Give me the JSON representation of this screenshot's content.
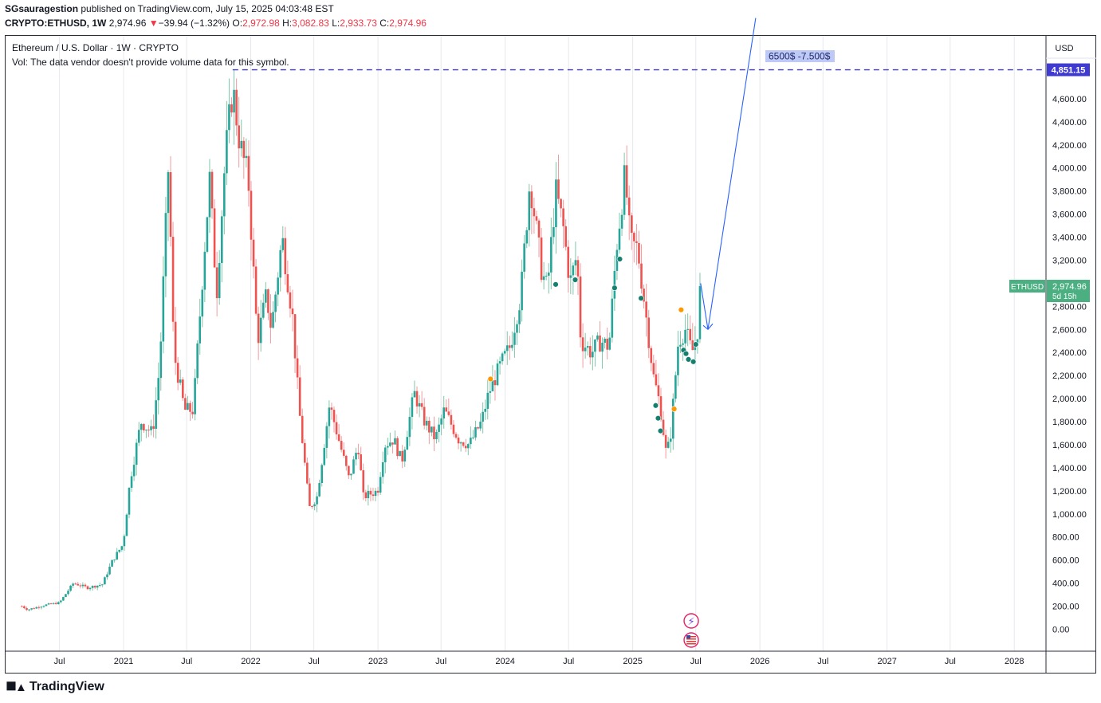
{
  "header": {
    "author": "SGsauragestion",
    "published": "published on TradingView.com, July 15, 2025 04:03:48 EST"
  },
  "ohlc": {
    "symbol": "CRYPTO:ETHUSD, 1W",
    "last": "2,974.96",
    "arrow": "▼",
    "change": "−39.94 (−1.32%)",
    "o_label": "O:",
    "o": "2,972.98",
    "h_label": "H:",
    "h": "3,082.83",
    "l_label": "L:",
    "l": "2,933.73",
    "c_label": "C:",
    "c": "2,974.96"
  },
  "legend": {
    "title": "Ethereum / U.S. Dollar · 1W · CRYPTO",
    "vol": "Vol: The data vendor doesn't provide volume data for this symbol."
  },
  "price_axis": {
    "currency": "USD",
    "target_level": "4,851.15",
    "ticker": "ETHUSD",
    "last_price": "2,974.96",
    "countdown": "5d 15h"
  },
  "annotation": {
    "text": "6500$ -7.500$"
  },
  "logo": {
    "text": "TradingView"
  },
  "colors": {
    "up": "#26a69a",
    "down": "#ef5350",
    "up_soft": "#7ec8a9",
    "down_soft": "#f29ca0",
    "dashed": "#3f3bd1",
    "arrow": "#2962ff",
    "label_bg": "#bfc9f5",
    "price_label": "#4caf82",
    "negative": "#f23645"
  },
  "chart_data": {
    "type": "candlestick",
    "timeframe": "1W",
    "x_ticks": [
      "Jul",
      "2021",
      "Jul",
      "2022",
      "Jul",
      "2023",
      "Jul",
      "2024",
      "Jul",
      "2025",
      "Jul",
      "2026",
      "Jul",
      "2027",
      "Jul",
      "2028"
    ],
    "y_ticks": [
      "0.00",
      "200.00",
      "400.00",
      "600.00",
      "800.00",
      "1,000.00",
      "1,200.00",
      "1,400.00",
      "1,600.00",
      "1,800.00",
      "2,000.00",
      "2,200.00",
      "2,400.00",
      "2,600.00",
      "2,800.00",
      "3,000.00",
      "3,200.00",
      "3,400.00",
      "3,600.00",
      "3,800.00",
      "4,000.00",
      "4,200.00",
      "4,400.00",
      "4,600.00",
      "4,800.00"
    ],
    "ylim": [
      -200,
      5250
    ],
    "horizontal_line": 4851.15,
    "last_close": 2974.96,
    "anchors": [
      [
        "2020-03-15",
        200
      ],
      [
        "2020-04-01",
        170
      ],
      [
        "2020-05-20",
        210
      ],
      [
        "2020-07-01",
        230
      ],
      [
        "2020-08-10",
        400
      ],
      [
        "2020-09-20",
        360
      ],
      [
        "2020-11-01",
        390
      ],
      [
        "2020-12-01",
        600
      ],
      [
        "2020-12-31",
        740
      ],
      [
        "2021-01-20",
        1300
      ],
      [
        "2021-02-20",
        1800
      ],
      [
        "2021-03-25",
        1700
      ],
      [
        "2021-04-15",
        2300
      ],
      [
        "2021-05-10",
        4050
      ],
      [
        "2021-05-25",
        2400
      ],
      [
        "2021-06-25",
        1900
      ],
      [
        "2021-07-20",
        1900
      ],
      [
        "2021-08-20",
        3250
      ],
      [
        "2021-09-05",
        3900
      ],
      [
        "2021-09-25",
        2900
      ],
      [
        "2021-10-20",
        4100
      ],
      [
        "2021-11-10",
        4700
      ],
      [
        "2021-12-01",
        4200
      ],
      [
        "2021-12-25",
        3900
      ],
      [
        "2022-01-20",
        2500
      ],
      [
        "2022-02-15",
        2900
      ],
      [
        "2022-03-01",
        2600
      ],
      [
        "2022-04-01",
        3400
      ],
      [
        "2022-05-01",
        2700
      ],
      [
        "2022-05-20",
        1900
      ],
      [
        "2022-06-18",
        1050
      ],
      [
        "2022-07-10",
        1150
      ],
      [
        "2022-08-15",
        1950
      ],
      [
        "2022-09-10",
        1650
      ],
      [
        "2022-10-10",
        1300
      ],
      [
        "2022-11-05",
        1600
      ],
      [
        "2022-11-20",
        1150
      ],
      [
        "2022-12-31",
        1200
      ],
      [
        "2023-01-20",
        1600
      ],
      [
        "2023-02-15",
        1650
      ],
      [
        "2023-03-10",
        1450
      ],
      [
        "2023-04-15",
        2050
      ],
      [
        "2023-05-15",
        1800
      ],
      [
        "2023-06-15",
        1650
      ],
      [
        "2023-07-10",
        1900
      ],
      [
        "2023-08-20",
        1650
      ],
      [
        "2023-09-20",
        1600
      ],
      [
        "2023-10-25",
        1800
      ],
      [
        "2023-11-15",
        2050
      ],
      [
        "2023-12-20",
        2300
      ],
      [
        "2024-01-15",
        2450
      ],
      [
        "2024-02-15",
        2900
      ],
      [
        "2024-03-12",
        3900
      ],
      [
        "2024-04-15",
        3100
      ],
      [
        "2024-05-01",
        2950
      ],
      [
        "2024-05-25",
        3800
      ],
      [
        "2024-06-15",
        3500
      ],
      [
        "2024-07-05",
        3000
      ],
      [
        "2024-07-25",
        3250
      ],
      [
        "2024-08-05",
        2500
      ],
      [
        "2024-09-05",
        2400
      ],
      [
        "2024-10-01",
        2500
      ],
      [
        "2024-10-25",
        2450
      ],
      [
        "2024-11-15",
        3300
      ],
      [
        "2024-12-10",
        3950
      ],
      [
        "2024-12-25",
        3350
      ],
      [
        "2025-01-15",
        3300
      ],
      [
        "2025-02-05",
        2800
      ],
      [
        "2025-03-01",
        2200
      ],
      [
        "2025-03-20",
        1950
      ],
      [
        "2025-04-08",
        1500
      ],
      [
        "2025-04-20",
        1700
      ],
      [
        "2025-05-12",
        2500
      ],
      [
        "2025-06-01",
        2600
      ],
      [
        "2025-06-20",
        2400
      ],
      [
        "2025-07-05",
        2550
      ],
      [
        "2025-07-15",
        2975
      ]
    ],
    "forecast_path": [
      [
        "2025-07-15",
        3000
      ],
      [
        "2025-08-05",
        2600
      ],
      [
        "2025-12-20",
        5300
      ]
    ]
  }
}
